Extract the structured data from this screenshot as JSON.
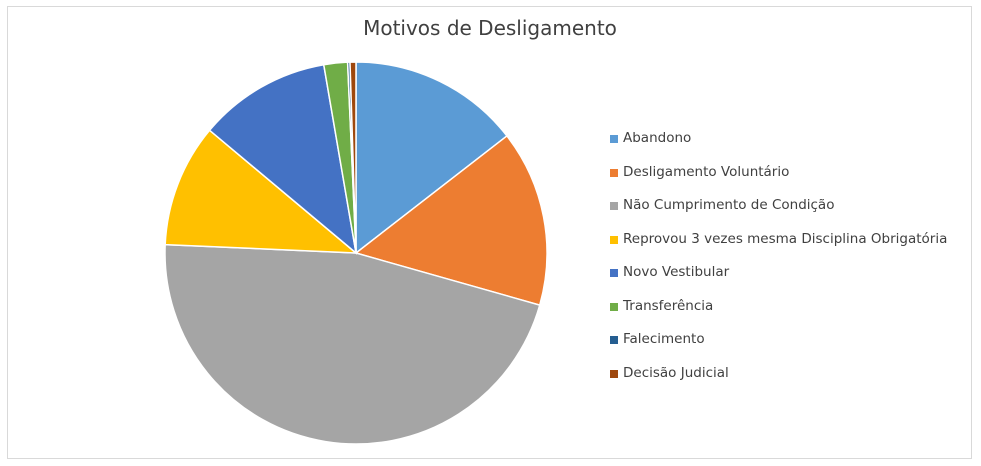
{
  "chart_data": {
    "type": "pie",
    "title": "Motivos de Desligamento",
    "legend_position": "right",
    "slices": [
      {
        "label": "Abandono",
        "value": 14.5,
        "color": "#5b9bd5"
      },
      {
        "label": "Desligamento Voluntário",
        "value": 14.9,
        "color": "#ed7d31"
      },
      {
        "label": "Não Cumprimento de Condição",
        "value": 46.3,
        "color": "#a5a5a5"
      },
      {
        "label": "Reprovou 3 vezes mesma Disciplina Obrigatória",
        "value": 10.4,
        "color": "#ffc000"
      },
      {
        "label": "Novo Vestibular",
        "value": 11.2,
        "color": "#4472c4"
      },
      {
        "label": "Transferência",
        "value": 2.0,
        "color": "#70ad47"
      },
      {
        "label": "Falecimento",
        "value": 0.2,
        "color": "#255e91"
      },
      {
        "label": "Decisão Judicial",
        "value": 0.5,
        "color": "#9e480e"
      }
    ]
  }
}
